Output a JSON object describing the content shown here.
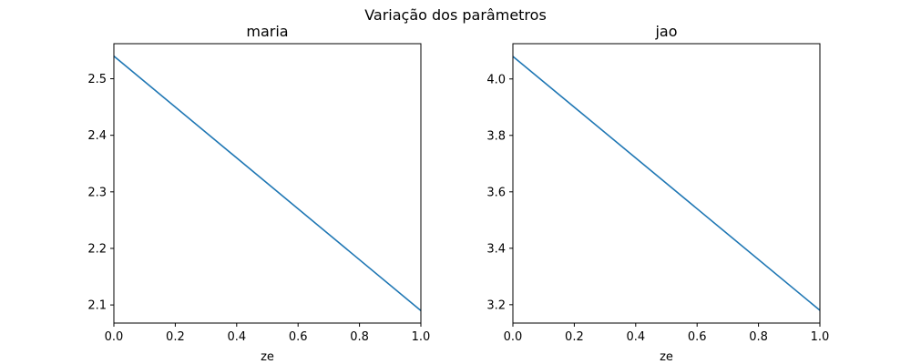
{
  "figure": {
    "title": "Variação dos parâmetros"
  },
  "chart_data": [
    {
      "type": "line",
      "title": "maria",
      "xlabel": "ze",
      "ylabel": "",
      "xlim": [
        0.0,
        1.0
      ],
      "ylim": [
        2.068,
        2.562
      ],
      "xticks": [
        0.0,
        0.2,
        0.4,
        0.6,
        0.8,
        1.0
      ],
      "xtick_labels": [
        "0.0",
        "0.2",
        "0.4",
        "0.6",
        "0.8",
        "1.0"
      ],
      "yticks": [
        2.1,
        2.2,
        2.3,
        2.4,
        2.5
      ],
      "ytick_labels": [
        "2.1",
        "2.2",
        "2.3",
        "2.4",
        "2.5"
      ],
      "grid": false,
      "series": [
        {
          "x": [
            0.0,
            1.0
          ],
          "y": [
            2.54,
            2.09
          ],
          "color": "#1f77b4"
        }
      ]
    },
    {
      "type": "line",
      "title": "jao",
      "xlabel": "ze",
      "ylabel": "",
      "xlim": [
        0.0,
        1.0
      ],
      "ylim": [
        3.135,
        4.125
      ],
      "xticks": [
        0.0,
        0.2,
        0.4,
        0.6,
        0.8,
        1.0
      ],
      "xtick_labels": [
        "0.0",
        "0.2",
        "0.4",
        "0.6",
        "0.8",
        "1.0"
      ],
      "yticks": [
        3.2,
        3.4,
        3.6,
        3.8,
        4.0
      ],
      "ytick_labels": [
        "3.2",
        "3.4",
        "3.6",
        "3.8",
        "4.0"
      ],
      "grid": false,
      "series": [
        {
          "x": [
            0.0,
            1.0
          ],
          "y": [
            4.08,
            3.18
          ],
          "color": "#1f77b4"
        }
      ]
    }
  ]
}
